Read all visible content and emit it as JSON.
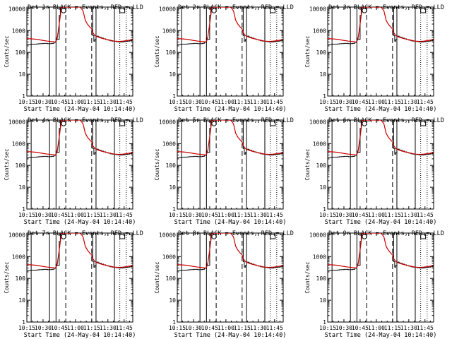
{
  "chart_data": [
    {
      "type": "line",
      "title": "Det 1r BLACK = Events, RED = LLD"
    },
    {
      "type": "line",
      "title": "Det 2r BLACK = Events, RED = LLD"
    },
    {
      "type": "line",
      "title": "Det 3r BLACK = Events, RED = LLD"
    },
    {
      "type": "line",
      "title": "Det 4r BLACK = Events, RED = LLD"
    },
    {
      "type": "line",
      "title": "Det 5r BLACK = Events, RED = LLD"
    },
    {
      "type": "line",
      "title": "Det 6r BLACK = Events, RED = LLD"
    },
    {
      "type": "line",
      "title": "Det 7r BLACK = Events, RED = LLD"
    },
    {
      "type": "line",
      "title": "Det 8r BLACK = Events, RED = LLD"
    },
    {
      "type": "line",
      "title": "Det 9r BLACK = Events, RED = LLD"
    }
  ],
  "common": {
    "xlabel": "Start Time (24-May-04 10:14:40)",
    "ylabel": "Counts/sec",
    "x_tick_labels": [
      "10:15",
      "10:30",
      "10:45",
      "11:00",
      "11:15",
      "11:30",
      "11:45"
    ],
    "x_tick_minutes": [
      1,
      16,
      31,
      46,
      61,
      76,
      91
    ],
    "xlim_minutes": [
      1,
      99
    ],
    "y_tick_labels": [
      "1",
      "10",
      "100",
      "1000",
      "10000"
    ],
    "y_tick_values": [
      1,
      10,
      100,
      1000,
      10000
    ],
    "ylim": [
      1,
      12000
    ],
    "y_scale": "log",
    "series": [
      {
        "name": "Events",
        "color": "#000000"
      },
      {
        "name": "LLD",
        "color": "#cc0000"
      }
    ],
    "events_x": [
      1,
      5,
      10,
      12,
      14,
      16,
      20,
      22,
      24,
      26,
      28,
      29,
      31,
      32,
      33,
      35,
      37,
      38,
      40,
      42,
      43,
      46,
      48,
      50,
      53,
      56,
      58,
      60,
      62,
      63,
      64,
      65,
      66,
      67,
      68,
      70,
      72,
      74,
      76,
      78,
      80,
      82,
      84,
      86,
      88,
      90,
      92,
      94,
      96,
      98,
      99
    ],
    "events_y": [
      230,
      240,
      245,
      250,
      252,
      260,
      250,
      255,
      260,
      290,
      450,
      400,
      5000,
      11000,
      12000,
      12000,
      12000,
      12000,
      12000,
      12000,
      12000,
      12000,
      12000,
      12000,
      12000,
      12000,
      12000,
      12000,
      600,
      330,
      390,
      550,
      560,
      520,
      490,
      450,
      420,
      390,
      370,
      340,
      330,
      320,
      310,
      300,
      300,
      310,
      320,
      330,
      340,
      360,
      380
    ],
    "lld_x": [
      1,
      5,
      10,
      15,
      20,
      25,
      27,
      28,
      29,
      31,
      33,
      36,
      40,
      45,
      49,
      50,
      51,
      53,
      54,
      55,
      57,
      59,
      61,
      62,
      64,
      67,
      70,
      74,
      78,
      82,
      86,
      90,
      94,
      98,
      99
    ],
    "lld_y": [
      430,
      420,
      400,
      360,
      330,
      310,
      300,
      320,
      420,
      2000,
      12000,
      12000,
      12000,
      12000,
      12000,
      12000,
      11000,
      8000,
      5000,
      3000,
      2000,
      1500,
      1200,
      800,
      600,
      500,
      450,
      400,
      360,
      330,
      320,
      330,
      350,
      380,
      390
    ],
    "vlines": [
      {
        "x": 5,
        "style": "solid"
      },
      {
        "x": 22,
        "style": "solid"
      },
      {
        "x": 28,
        "style": "solid"
      },
      {
        "x": 37,
        "style": "dashed"
      },
      {
        "x": 61,
        "style": "dashed"
      },
      {
        "x": 65,
        "style": "solid"
      },
      {
        "x": 82,
        "style": "solid"
      },
      {
        "x": 87,
        "style": "dotted"
      },
      {
        "x": 93,
        "style": "dotted"
      }
    ],
    "markers": [
      {
        "shape": "circle",
        "x": 35
      },
      {
        "shape": "square",
        "x": 87
      }
    ]
  }
}
